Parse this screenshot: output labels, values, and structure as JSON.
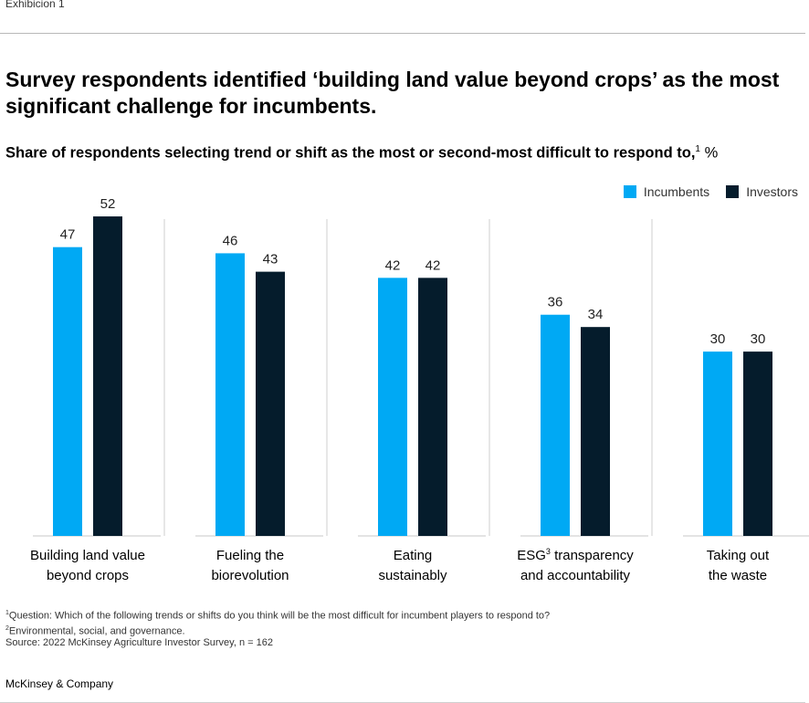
{
  "exhibit_label": "Exhibicion 1",
  "title": "Survey respondents identified ‘building land value beyond crops’ as the most significant challenge for incumbents.",
  "subtitle": {
    "text": "Share of respondents selecting trend or shift as the most or second-most difficult to respond to,",
    "footnote_ref": "1",
    "unit": " %"
  },
  "chart_data": {
    "type": "bar",
    "categories": [
      {
        "lines": [
          "Building land value",
          "beyond crops"
        ]
      },
      {
        "lines": [
          "Fueling the",
          "biorevolution"
        ]
      },
      {
        "lines": [
          "Eating",
          "sustainably"
        ]
      },
      {
        "lines": [
          "ESG",
          "and accountability"
        ],
        "sup": "3",
        "after": " transparency"
      },
      {
        "lines": [
          "Taking out",
          "the waste"
        ]
      }
    ],
    "series": [
      {
        "name": "Incumbents",
        "color": "#00a9f4",
        "values": [
          47,
          46,
          42,
          36,
          30
        ]
      },
      {
        "name": "Investors",
        "color": "#051c2c",
        "values": [
          52,
          43,
          42,
          34,
          30
        ]
      }
    ],
    "ylim": [
      0,
      60
    ],
    "legend_position": "top-right"
  },
  "footnotes": [
    {
      "sup": "1",
      "text": "Question: Which of the following trends or shifts do you think will be the most difficult for incumbent players to respond to?"
    },
    {
      "sup": "2",
      "text": "Environmental, social, and governance."
    },
    {
      "sup": "",
      "text": " Source: 2022 McKinsey Agriculture Investor Survey, n = 162"
    }
  ],
  "brand": "McKinsey & Company"
}
